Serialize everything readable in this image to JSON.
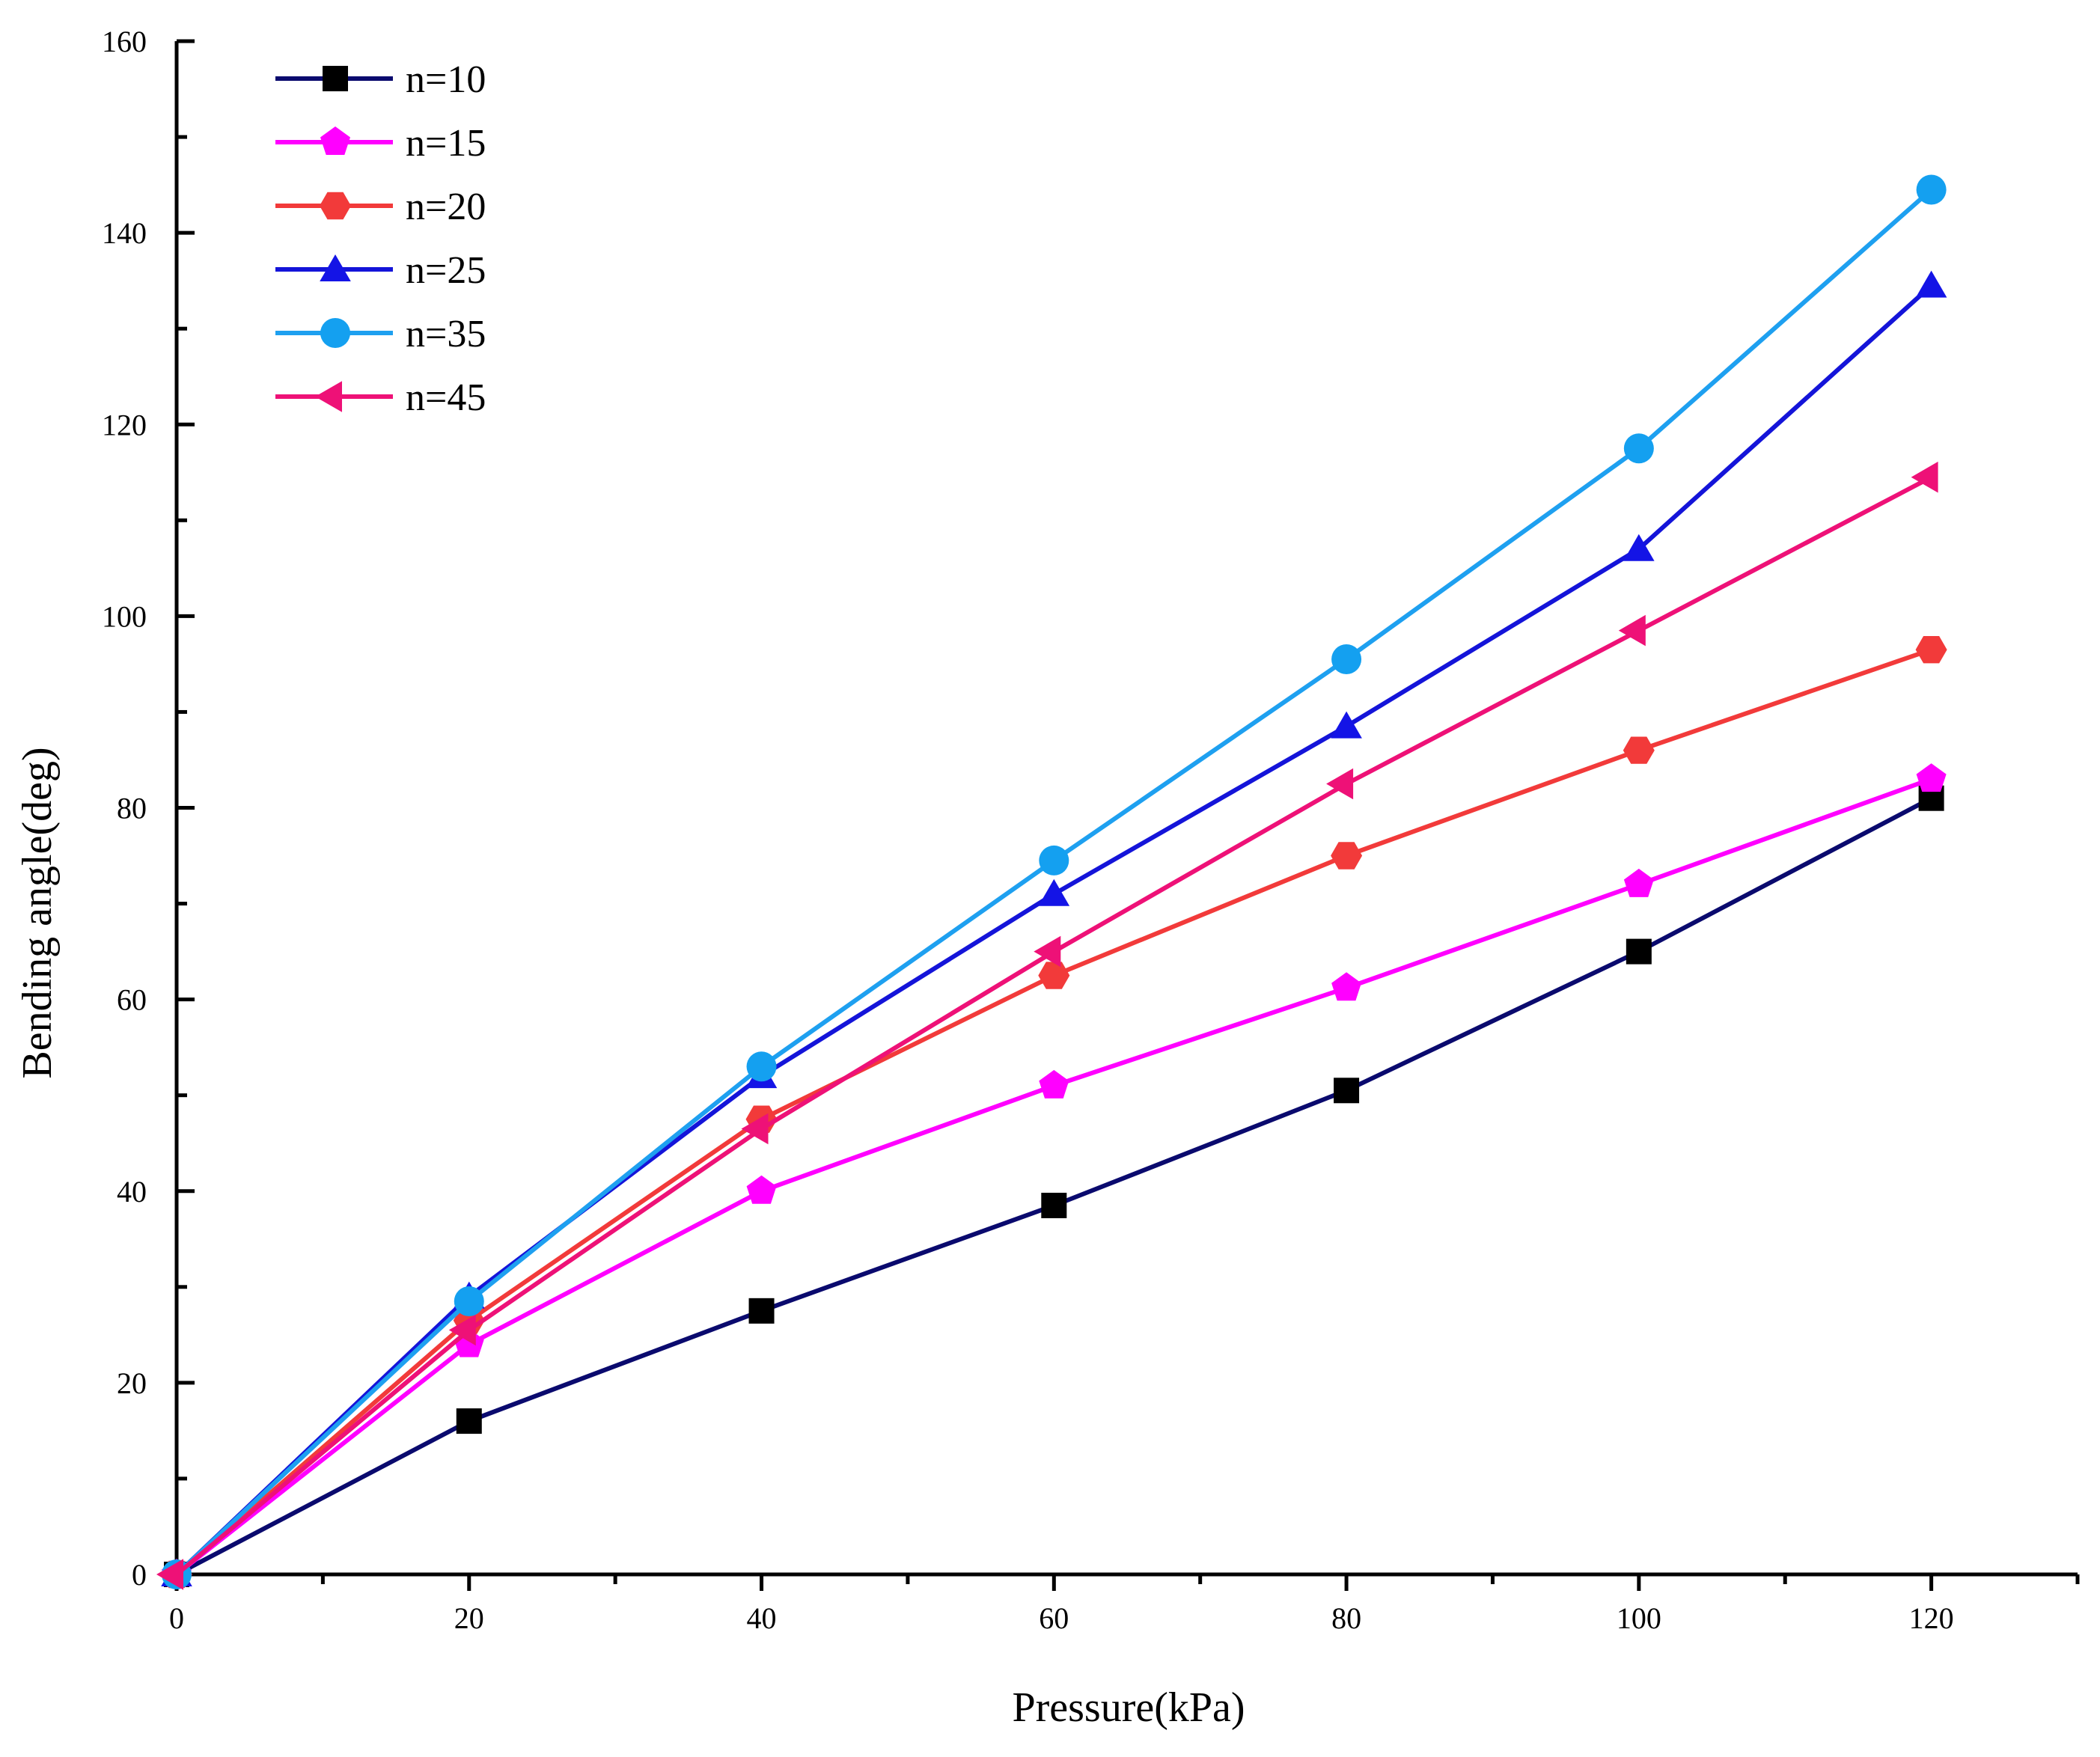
{
  "chart_data": {
    "type": "line",
    "title": "",
    "xlabel": "Pressure(kPa)",
    "ylabel": "Bending angle(deg)",
    "xlim": [
      0,
      130
    ],
    "ylim": [
      0,
      160
    ],
    "x_ticks": [
      0,
      20,
      40,
      60,
      80,
      100,
      120
    ],
    "y_ticks": [
      0,
      20,
      40,
      60,
      80,
      100,
      120,
      140,
      160
    ],
    "x_minor_step": 10,
    "y_minor_step": 10,
    "grid": false,
    "legend_position": "top-left",
    "x": [
      0,
      20,
      40,
      60,
      80,
      100,
      120
    ],
    "series": [
      {
        "name": "n=10",
        "color": "#0a0a6e",
        "marker": "square",
        "marker_color": "#000000",
        "values": [
          0,
          16,
          27.5,
          38.5,
          50.5,
          65,
          81
        ]
      },
      {
        "name": "n=15",
        "color": "#ff00ff",
        "marker": "pentagon",
        "marker_color": "#ff00ff",
        "values": [
          0,
          24,
          40,
          51,
          61.2,
          72,
          83
        ]
      },
      {
        "name": "n=20",
        "color": "#f23a3a",
        "marker": "hexagon",
        "marker_color": "#f23a3a",
        "values": [
          0,
          26.5,
          47.5,
          62.5,
          75,
          86,
          96.5
        ]
      },
      {
        "name": "n=25",
        "color": "#1414d9",
        "marker": "triangle-up",
        "marker_color": "#1414e6",
        "values": [
          0,
          29,
          52,
          71,
          88.5,
          107,
          134.5
        ]
      },
      {
        "name": "n=35",
        "color": "#1ea0f0",
        "marker": "circle",
        "marker_color": "#14a0f0",
        "values": [
          0,
          28.5,
          53,
          74.5,
          95.5,
          117.5,
          144.5
        ]
      },
      {
        "name": "n=45",
        "color": "#ee1177",
        "marker": "triangle-left",
        "marker_color": "#ee1177",
        "values": [
          0,
          25.5,
          46.5,
          65,
          82.5,
          98.5,
          114.5
        ]
      }
    ]
  }
}
